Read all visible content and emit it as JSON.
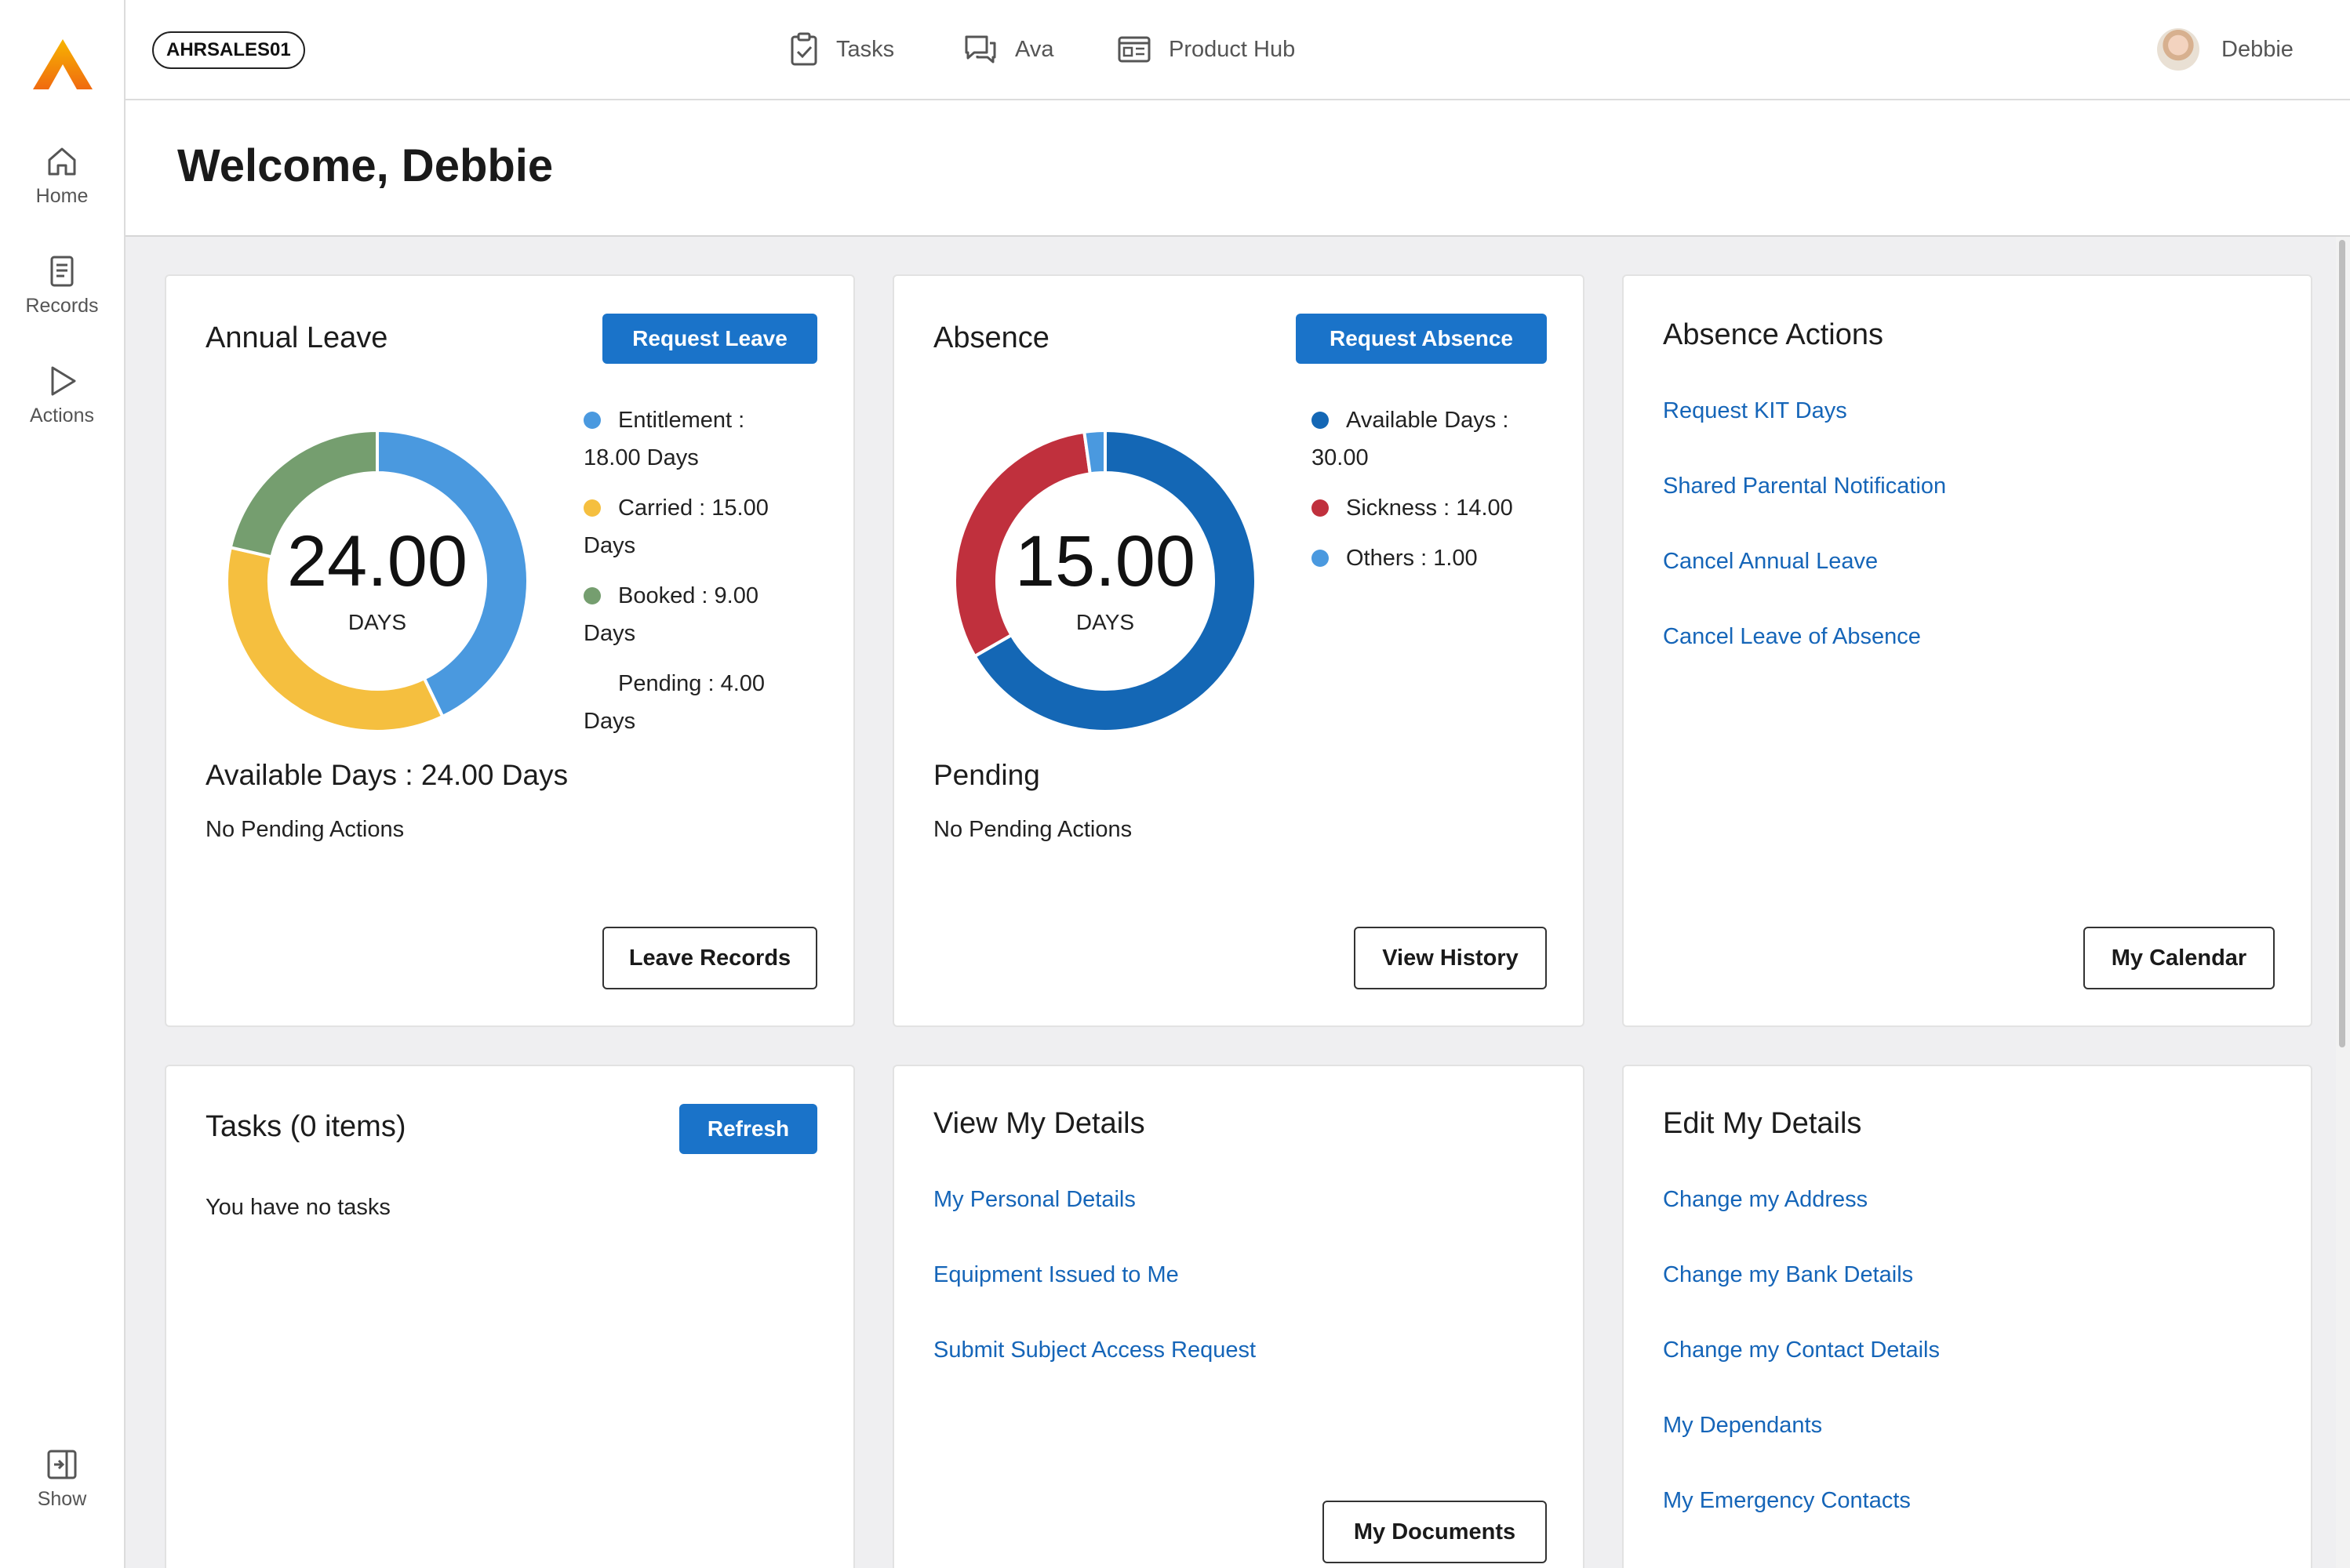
{
  "nav": {
    "items": [
      {
        "label": "Home"
      },
      {
        "label": "Records"
      },
      {
        "label": "Actions"
      }
    ],
    "show_label": "Show"
  },
  "header": {
    "company_code": "AHRSALES01",
    "tasks_label": "Tasks",
    "ava_label": "Ava",
    "product_hub_label": "Product Hub",
    "user_name": "Debbie"
  },
  "welcome": {
    "title": "Welcome, Debbie"
  },
  "annual_leave": {
    "title": "Annual Leave",
    "request_button": "Request Leave",
    "center_value": "24.00",
    "center_unit": "DAYS",
    "legend": [
      {
        "line1": "Entitlement :",
        "line2": "18.00 Days",
        "color": "#4a99df"
      },
      {
        "line1": "Carried : 15.00",
        "line2": "Days",
        "color": "#f5bf3f"
      },
      {
        "line1": "Booked : 9.00",
        "line2": "Days",
        "color": "#759e6f"
      },
      {
        "line1": "Pending : 4.00",
        "line2": "Days",
        "color": ""
      }
    ],
    "available_text": "Available Days : 24.00 Days",
    "pending_text": "No Pending Actions",
    "records_button": "Leave Records"
  },
  "absence": {
    "title": "Absence",
    "request_button": "Request Absence",
    "center_value": "15.00",
    "center_unit": "DAYS",
    "legend": [
      {
        "line1": "Available Days :",
        "line2": "30.00",
        "color": "#1467b5"
      },
      {
        "line1": "Sickness : 14.00",
        "line2": "",
        "color": "#c0303d"
      },
      {
        "line1": "Others : 1.00",
        "line2": "",
        "color": "#4a99df"
      }
    ],
    "pending_heading": "Pending",
    "pending_text": "No Pending Actions",
    "history_button": "View History"
  },
  "absence_actions": {
    "title": "Absence Actions",
    "links": [
      "Request KIT Days",
      "Shared Parental Notification",
      "Cancel Annual Leave",
      "Cancel Leave of Absence"
    ],
    "calendar_button": "My Calendar"
  },
  "tasks": {
    "title": "Tasks (0 items)",
    "refresh_button": "Refresh",
    "empty_text": "You have no tasks"
  },
  "view_details": {
    "title": "View My Details",
    "links": [
      "My Personal Details",
      "Equipment Issued to Me",
      "Submit Subject Access Request"
    ],
    "documents_button": "My Documents"
  },
  "edit_details": {
    "title": "Edit My Details",
    "links": [
      "Change my Address",
      "Change my Bank Details",
      "Change my Contact Details",
      "My Dependants",
      "My Emergency Contacts"
    ]
  },
  "chart_data": [
    {
      "type": "pie",
      "categories": [
        "Entitlement",
        "Carried",
        "Booked"
      ],
      "values": [
        18.0,
        15.0,
        9.0
      ],
      "colors": [
        "#4a99df",
        "#f5bf3f",
        "#759e6f"
      ],
      "title": "Annual Leave"
    },
    {
      "type": "pie",
      "categories": [
        "Available Days",
        "Sickness",
        "Others"
      ],
      "values": [
        30.0,
        14.0,
        1.0
      ],
      "colors": [
        "#1467b5",
        "#c0303d",
        "#4a99df"
      ],
      "title": "Absence"
    }
  ]
}
